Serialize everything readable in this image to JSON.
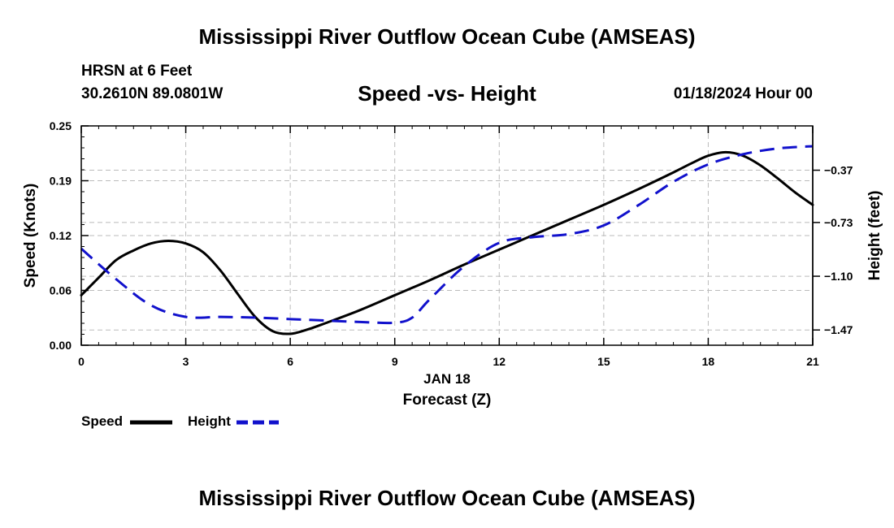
{
  "header": {
    "title": "Mississippi River Outflow Ocean Cube (AMSEAS)",
    "station": "HRSN at 6 Feet",
    "coords": "30.2610N  89.0801W",
    "subtitle": "Speed -vs- Height",
    "timestamp": "01/18/2024 Hour 00"
  },
  "footer": {
    "title": "Mississippi River Outflow Ocean Cube (AMSEAS)"
  },
  "chart_data": {
    "type": "line",
    "title": "Speed -vs- Height",
    "xlabel": "Forecast (Z)",
    "date_label": "JAN 18",
    "ylabel": "Speed (Knots)",
    "y2label": "Height (feet)",
    "xlim": [
      0,
      21
    ],
    "ylim": [
      0,
      0.25
    ],
    "y2lim": [
      -1.575,
      -0.065
    ],
    "x_ticks": [
      0,
      3,
      6,
      9,
      12,
      15,
      18,
      21
    ],
    "x_tick_labels": [
      "0",
      "3",
      "6",
      "9",
      "12",
      "15",
      "18",
      "21"
    ],
    "y_ticks": [
      0,
      0.0625,
      0.125,
      0.1875,
      0.25
    ],
    "y_tick_labels": [
      "0.00",
      "0.06",
      "0.12",
      "0.19",
      "0.25"
    ],
    "y2_ticks": [
      -1.47,
      -1.1,
      -0.73,
      -0.37
    ],
    "y2_tick_labels": [
      "−1.47",
      "−1.10",
      "−0.73",
      "−0.37"
    ],
    "grid": true,
    "legend_position": "bottom-left",
    "series": [
      {
        "name": "Speed",
        "axis": "left",
        "color": "#000000",
        "style": "solid",
        "x": [
          0,
          0.5,
          1,
          1.5,
          2,
          2.5,
          3,
          3.5,
          4,
          4.5,
          5,
          5.5,
          6,
          6.5,
          7,
          8,
          9,
          10,
          11,
          12,
          13,
          14,
          15,
          16,
          17,
          17.5,
          18,
          18.5,
          19,
          19.5,
          20,
          20.5,
          21
        ],
        "values": [
          0.057,
          0.077,
          0.097,
          0.108,
          0.116,
          0.119,
          0.116,
          0.106,
          0.085,
          0.058,
          0.032,
          0.016,
          0.013,
          0.018,
          0.025,
          0.04,
          0.057,
          0.074,
          0.092,
          0.109,
          0.126,
          0.143,
          0.16,
          0.178,
          0.197,
          0.207,
          0.216,
          0.22,
          0.216,
          0.205,
          0.19,
          0.174,
          0.16
        ]
      },
      {
        "name": "Height",
        "axis": "right",
        "color": "#1111cc",
        "style": "dashed",
        "x": [
          0,
          1,
          2,
          3,
          4,
          5,
          6,
          7,
          8,
          9,
          9.5,
          10,
          11,
          12,
          13,
          14,
          15,
          16,
          17,
          18,
          19,
          20,
          21
        ],
        "values": [
          -0.91,
          -1.12,
          -1.3,
          -1.38,
          -1.38,
          -1.385,
          -1.395,
          -1.405,
          -1.415,
          -1.42,
          -1.385,
          -1.26,
          -1.03,
          -0.87,
          -0.83,
          -0.81,
          -0.75,
          -0.61,
          -0.45,
          -0.33,
          -0.26,
          -0.22,
          -0.205
        ]
      }
    ]
  }
}
